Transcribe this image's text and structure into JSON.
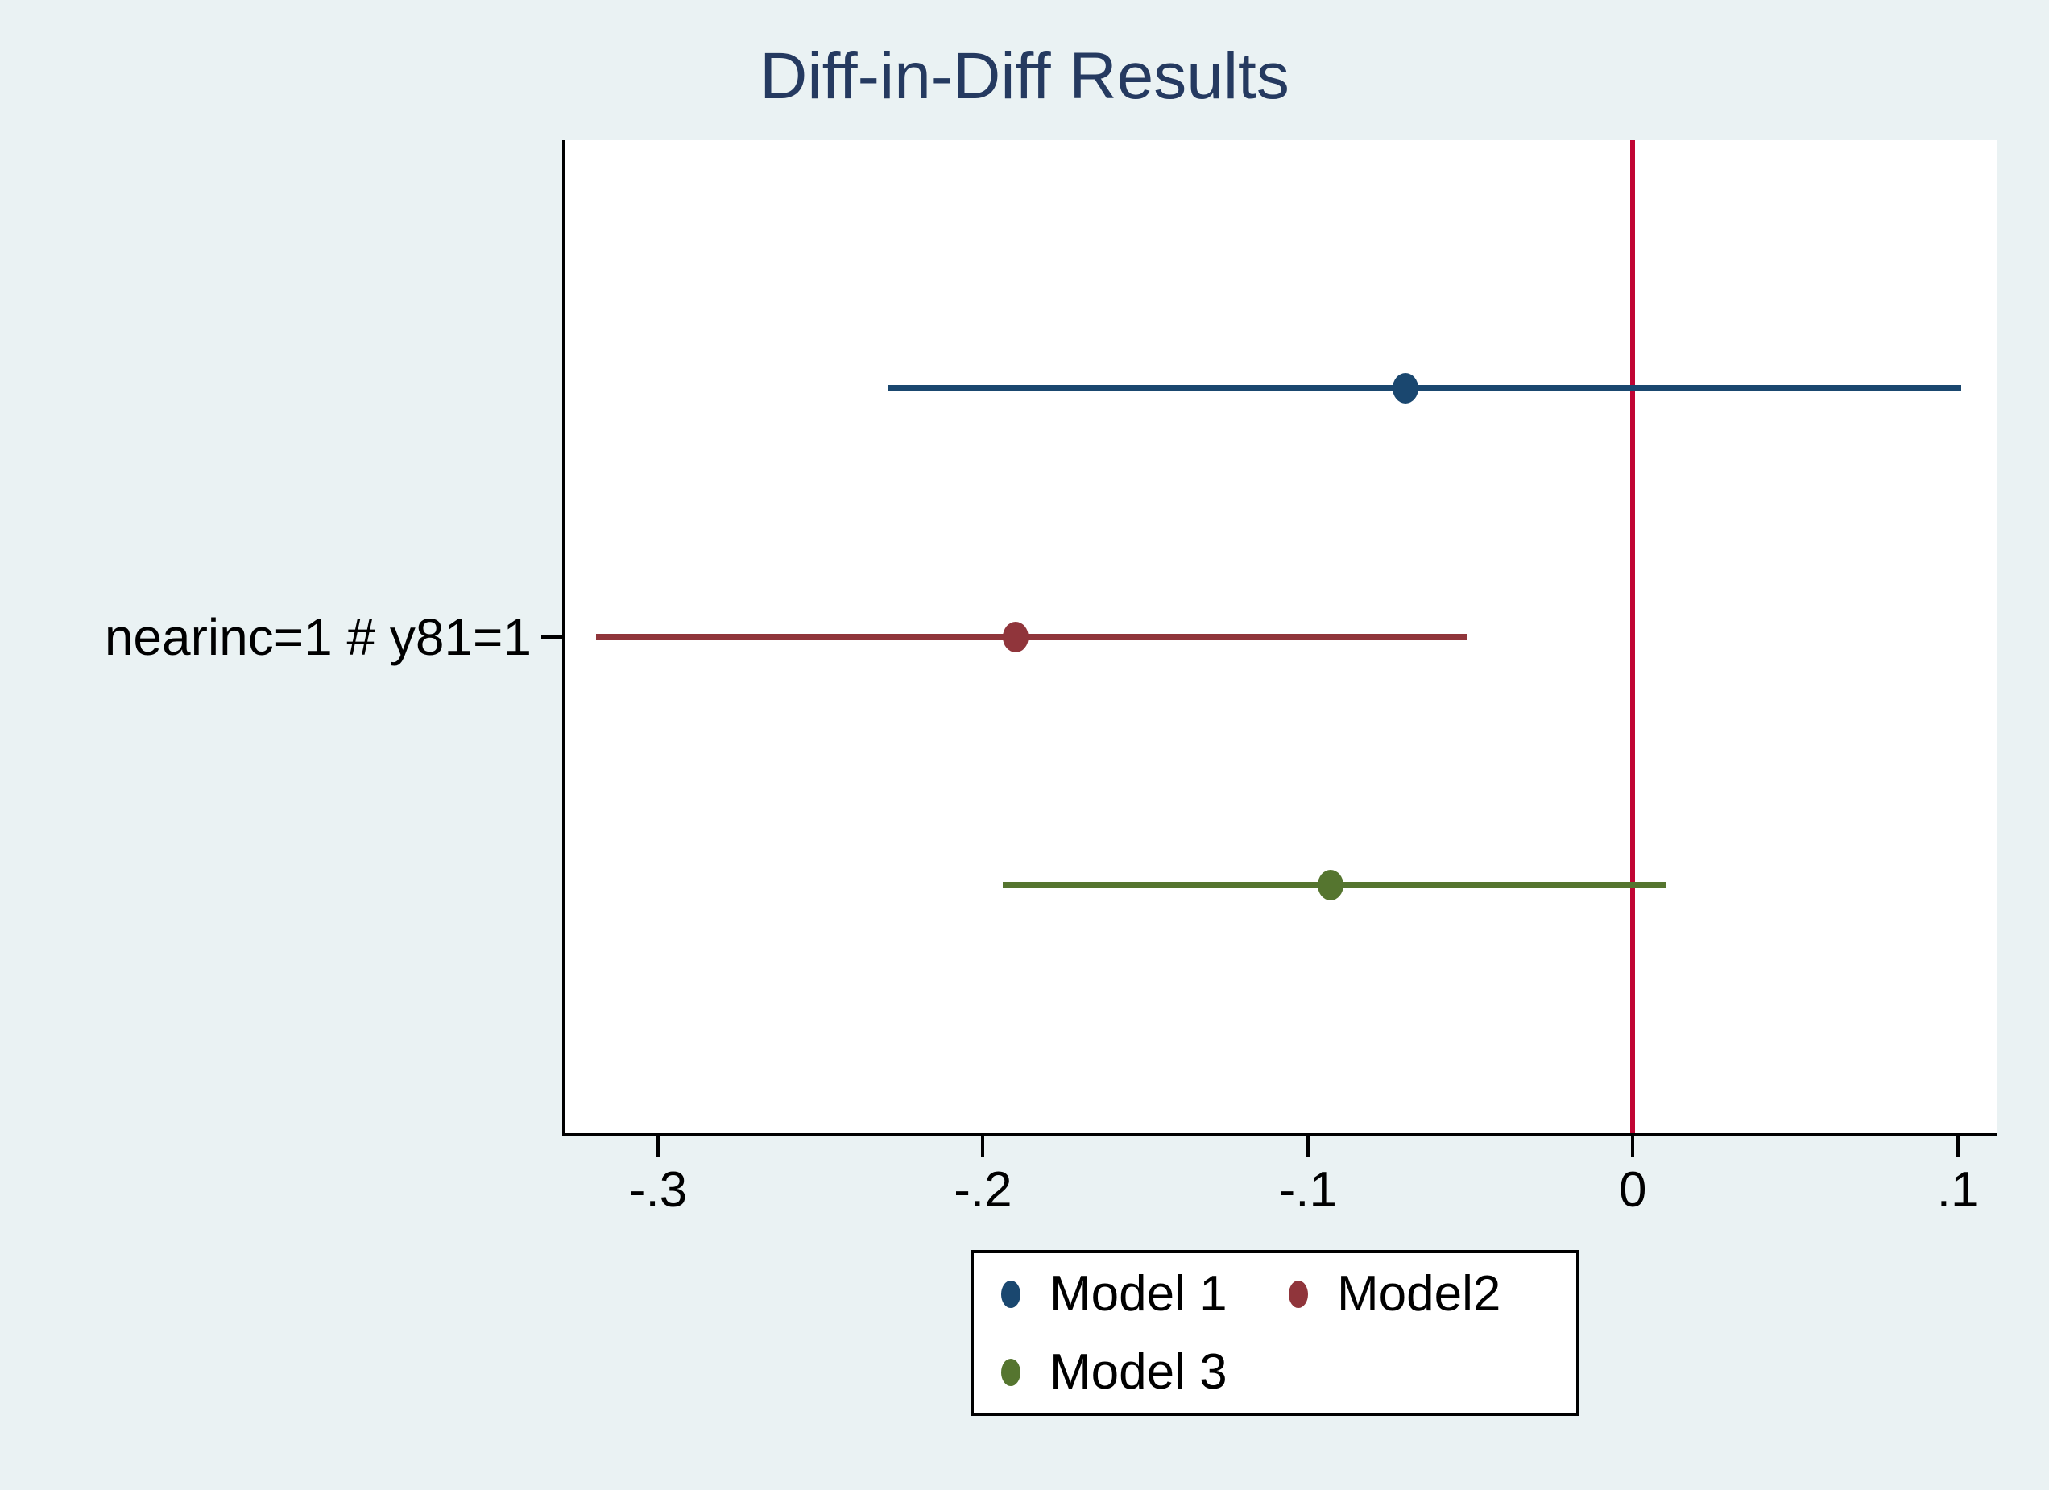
{
  "chart_data": {
    "type": "scatter",
    "subtype": "coefficient-plot-horizontal-ci",
    "title": "Diff-in-Diff Results",
    "coefficient_label": "nearinc=1 # y81=1",
    "x_ticks": [
      -0.3,
      -0.2,
      -0.1,
      0,
      0.1
    ],
    "x_tick_labels": [
      "-.3",
      "-.2",
      "-.1",
      "0",
      ".1"
    ],
    "xlim": [
      -0.329,
      0.112
    ],
    "reference_line_x": 0,
    "grid": false,
    "legend_position": "below-plot-center",
    "series": [
      {
        "name": "Model 1",
        "color": "#1a476f",
        "estimate": -0.07,
        "ci_low": -0.229,
        "ci_high": 0.101
      },
      {
        "name": "Model2",
        "color": "#90353b",
        "estimate": -0.19,
        "ci_low": -0.319,
        "ci_high": -0.051
      },
      {
        "name": "Model 3",
        "color": "#55752f",
        "estimate": -0.093,
        "ci_low": -0.194,
        "ci_high": 0.01
      }
    ],
    "colors": {
      "background": "#eaf2f3",
      "plot_background": "#ffffff",
      "axis": "#000000",
      "title": "#253a60",
      "reference_line": "#c10534"
    }
  }
}
